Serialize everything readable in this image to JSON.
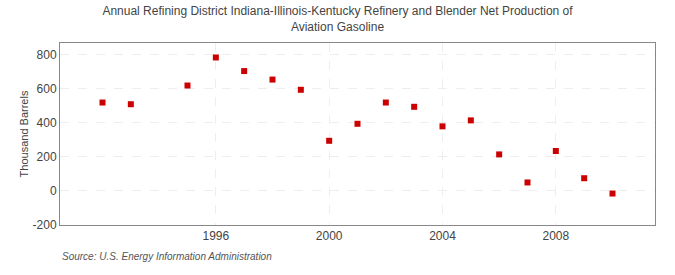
{
  "chart_data": {
    "type": "scatter",
    "title": "Annual Refining District Indiana-Illinois-Kentucky Refinery and Blender Net Production of\nAviation Gasoline",
    "ylabel": "Thousand Barrels",
    "source": "Source: U.S. Energy Information Administration",
    "x": [
      1992,
      1993,
      1995,
      1996,
      1997,
      1998,
      1999,
      2000,
      2001,
      2002,
      2003,
      2004,
      2005,
      2006,
      2007,
      2008,
      2009,
      2010
    ],
    "values": [
      520,
      510,
      620,
      785,
      705,
      655,
      595,
      295,
      395,
      520,
      495,
      380,
      415,
      215,
      50,
      235,
      75,
      -15
    ],
    "color": "#cc0000",
    "marker": "square",
    "xlim": [
      1990.5,
      2011.5
    ],
    "ylim": [
      -200,
      870
    ],
    "xticks": [
      1996,
      2000,
      2004,
      2008
    ],
    "yticks": [
      -200,
      0,
      200,
      400,
      600,
      800
    ],
    "grid": true
  }
}
